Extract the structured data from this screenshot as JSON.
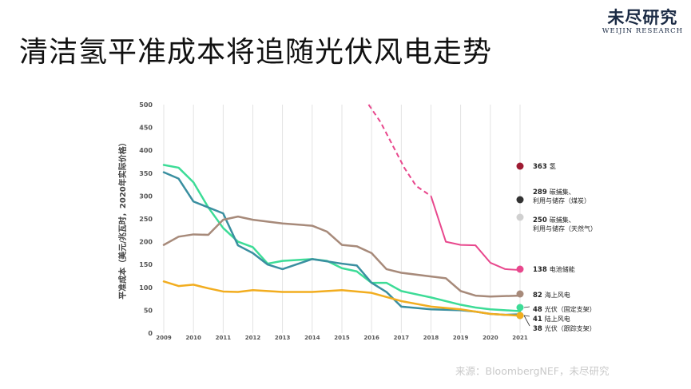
{
  "page": {
    "title": "清洁氢平准成本将追随光伏风电走势",
    "logo_cn": "未尽研究",
    "logo_en": "WEIJIN RESEARCH",
    "source": "来源：BloombergNEF，未尽研究"
  },
  "chart_data": {
    "type": "line",
    "title": "",
    "xlabel": "",
    "ylabel": "平准成本（美元/兆瓦时，2020年实际价格）",
    "ylim": [
      0,
      500
    ],
    "yticks": [
      0,
      50,
      100,
      150,
      200,
      250,
      300,
      350,
      400,
      450,
      500
    ],
    "xlim": [
      2009,
      2021
    ],
    "xticks": [
      2009,
      2010,
      2011,
      2012,
      2013,
      2014,
      2015,
      2016,
      2017,
      2018,
      2019,
      2020,
      2021
    ],
    "grid": "vertical",
    "series": [
      {
        "id": "pv_fixed",
        "color": "#3ddc97",
        "dashed_until": null,
        "x": [
          2009,
          2009.5,
          2010,
          2010.5,
          2011,
          2011.5,
          2012,
          2012.5,
          2013,
          2014,
          2014.5,
          2015,
          2015.5,
          2016,
          2016.5,
          2017,
          2018,
          2019,
          2019.5,
          2020,
          2020.5,
          2021
        ],
        "y": [
          368,
          362,
          330,
          275,
          230,
          200,
          188,
          152,
          158,
          162,
          158,
          142,
          135,
          110,
          110,
          92,
          78,
          62,
          56,
          52,
          50,
          48
        ]
      },
      {
        "id": "onshore_wind",
        "color": "#3a8fa0",
        "dashed_until": null,
        "x": [
          2009,
          2009.5,
          2010,
          2011,
          2011.5,
          2012,
          2012.5,
          2013,
          2014,
          2015,
          2015.5,
          2016,
          2016.5,
          2017,
          2018,
          2019,
          2019.5,
          2020,
          2020.5,
          2021
        ],
        "y": [
          352,
          338,
          288,
          262,
          192,
          175,
          150,
          140,
          162,
          152,
          148,
          110,
          90,
          58,
          52,
          50,
          47,
          42,
          40,
          41
        ]
      },
      {
        "id": "pv_tracking",
        "color": "#f2ad1f",
        "dashed_until": null,
        "x": [
          2009,
          2009.5,
          2010,
          2010.5,
          2011,
          2011.5,
          2012,
          2013,
          2014,
          2015,
          2016,
          2017,
          2018,
          2019,
          2020,
          2021
        ],
        "y": [
          113,
          103,
          106,
          98,
          91,
          90,
          94,
          90,
          90,
          94,
          88,
          70,
          58,
          52,
          42,
          38
        ]
      },
      {
        "id": "offshore_wind",
        "color": "#a78a7a",
        "dashed_until": null,
        "x": [
          2009,
          2009.5,
          2010,
          2010.5,
          2011,
          2011.5,
          2012,
          2013,
          2014,
          2014.5,
          2015,
          2015.5,
          2016,
          2016.5,
          2017,
          2018,
          2018.5,
          2019,
          2019.5,
          2020,
          2021
        ],
        "y": [
          193,
          211,
          216,
          215,
          248,
          255,
          248,
          240,
          235,
          222,
          193,
          190,
          175,
          140,
          132,
          124,
          120,
          92,
          82,
          80,
          82
        ]
      },
      {
        "id": "battery_storage",
        "color": "#e8488d",
        "dashed_until": 2018,
        "x": [
          2015.9,
          2016.3,
          2016.7,
          2017.1,
          2017.5,
          2018,
          2018.5,
          2019,
          2019.5,
          2020,
          2020.5,
          2021
        ],
        "y": [
          500,
          462,
          412,
          362,
          322,
          300,
          200,
          193,
          192,
          154,
          140,
          138
        ]
      }
    ],
    "endpoints": [
      {
        "value": "363",
        "label_lines": [
          "氢"
        ],
        "color": "#9e1b32",
        "y": 363
      },
      {
        "value": "289",
        "label_lines": [
          "碳捕集、",
          "利用与储存（煤炭）"
        ],
        "color": "#333333",
        "y": 289
      },
      {
        "value": "250",
        "label_lines": [
          "碳捕集、",
          "利用与储存（天然气）"
        ],
        "color": "#d0d0d0",
        "y": 250
      },
      {
        "value": "138",
        "label_lines": [
          "电池储能"
        ],
        "color": "#e8488d",
        "y": 138
      },
      {
        "value": "82",
        "label_lines": [
          "海上风电"
        ],
        "color": "#a78a7a",
        "y": 82
      },
      {
        "value": "48",
        "label_lines": [
          "光伏（固定支架）"
        ],
        "color": "#3ddc97",
        "y": 48
      },
      {
        "value": "41",
        "label_lines": [
          "陆上风电"
        ],
        "color": "#3a8fa0",
        "y": 41
      },
      {
        "value": "38",
        "label_lines": [
          "光伏（跟踪支架）"
        ],
        "color": "#f2ad1f",
        "y": 38
      }
    ]
  }
}
